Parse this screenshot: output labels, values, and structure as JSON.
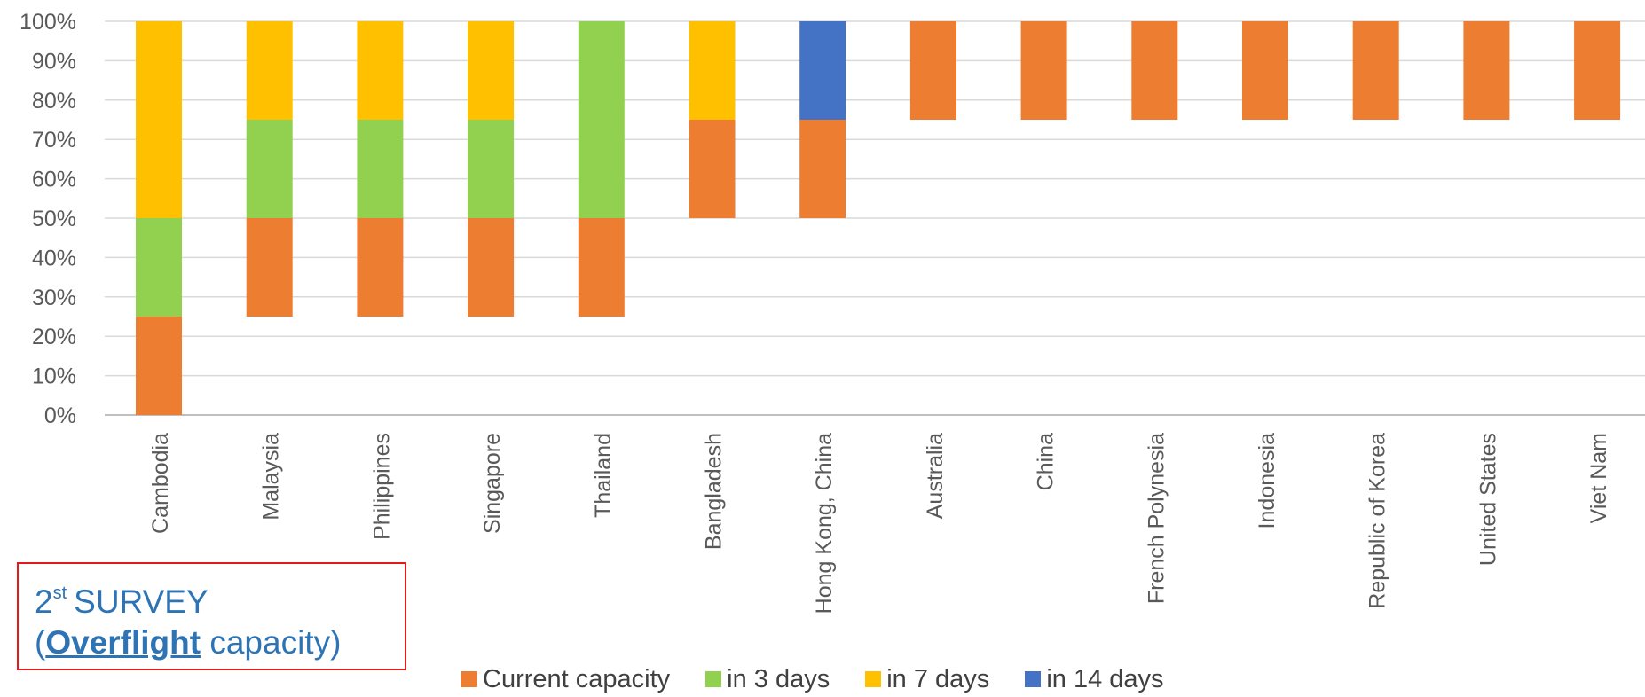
{
  "chart_data": {
    "type": "bar",
    "stacked": true,
    "floating": true,
    "title": "",
    "xlabel": "",
    "ylabel": "",
    "ylim": [
      0,
      100
    ],
    "yticks": [
      "0%",
      "10%",
      "20%",
      "30%",
      "40%",
      "50%",
      "60%",
      "70%",
      "80%",
      "90%",
      "100%"
    ],
    "categories": [
      "Cambodia",
      "Malaysia",
      "Philippines",
      "Singapore",
      "Thailand",
      "Bangladesh",
      "Hong Kong, China",
      "Australia",
      "China",
      "French Polynesia",
      "Indonesia",
      "Republic of Korea",
      "United States",
      "Viet Nam"
    ],
    "series": [
      {
        "name": "Current capacity",
        "color": "#ed7d31",
        "ranges": [
          [
            0,
            25
          ],
          [
            25,
            50
          ],
          [
            25,
            50
          ],
          [
            25,
            50
          ],
          [
            25,
            50
          ],
          [
            50,
            75
          ],
          [
            50,
            75
          ],
          [
            75,
            100
          ],
          [
            75,
            100
          ],
          [
            75,
            100
          ],
          [
            75,
            100
          ],
          [
            75,
            100
          ],
          [
            75,
            100
          ],
          [
            75,
            100
          ]
        ]
      },
      {
        "name": "in 3 days",
        "color": "#92d050",
        "ranges": [
          [
            25,
            50
          ],
          [
            50,
            75
          ],
          [
            50,
            75
          ],
          [
            50,
            75
          ],
          [
            50,
            100
          ],
          null,
          null,
          null,
          null,
          null,
          null,
          null,
          null,
          null
        ]
      },
      {
        "name": "in 7 days",
        "color": "#ffc000",
        "ranges": [
          [
            50,
            100
          ],
          [
            75,
            100
          ],
          [
            75,
            100
          ],
          [
            75,
            100
          ],
          null,
          [
            75,
            100
          ],
          null,
          null,
          null,
          null,
          null,
          null,
          null,
          null
        ]
      },
      {
        "name": "in 14 days",
        "color": "#4472c4",
        "ranges": [
          null,
          null,
          null,
          null,
          null,
          null,
          [
            75,
            100
          ],
          null,
          null,
          null,
          null,
          null,
          null,
          null
        ]
      }
    ],
    "grid": true,
    "legend_position": "bottom"
  },
  "annotation": {
    "line1_num": "2",
    "line1_sup": "st",
    "line1_text": "SURVEY",
    "line2_open": "(",
    "line2_bold": "Overflight",
    "line2_rest": " capacity)"
  }
}
